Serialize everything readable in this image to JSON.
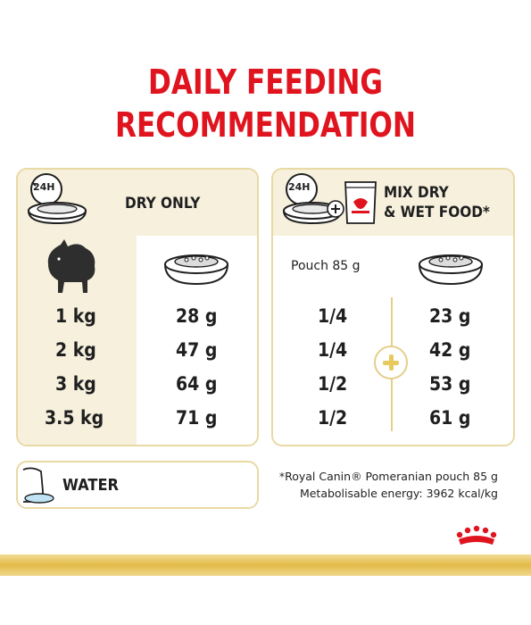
{
  "title": {
    "line1": "DAILY FEEDING",
    "line2": "RECOMMENDATION"
  },
  "dry_panel": {
    "badge": "24H",
    "label": "DRY ONLY",
    "rows": [
      {
        "weight": "1 kg",
        "grams": "28 g"
      },
      {
        "weight": "2 kg",
        "grams": "47 g"
      },
      {
        "weight": "3 kg",
        "grams": "64 g"
      },
      {
        "weight": "3.5 kg",
        "grams": "71 g"
      }
    ]
  },
  "mix_panel": {
    "badge": "24H",
    "label_line1": "MIX DRY",
    "label_line2": "& WET FOOD*",
    "pouch_label": "Pouch 85 g",
    "rows": [
      {
        "pouch": "1/4",
        "grams": "23 g"
      },
      {
        "pouch": "1/4",
        "grams": "42 g"
      },
      {
        "pouch": "1/2",
        "grams": "53 g"
      },
      {
        "pouch": "1/2",
        "grams": "61 g"
      }
    ]
  },
  "water": {
    "label": "WATER"
  },
  "footnote": {
    "line1": "*Royal Canin® Pomeranian pouch 85 g",
    "line2": "Metabolisable energy: 3962 kcal/kg"
  },
  "colors": {
    "title_red": "#e0141e",
    "panel_cream": "#f6f0dd",
    "gold": "#e2bb48",
    "border": "#e9d9a4"
  }
}
